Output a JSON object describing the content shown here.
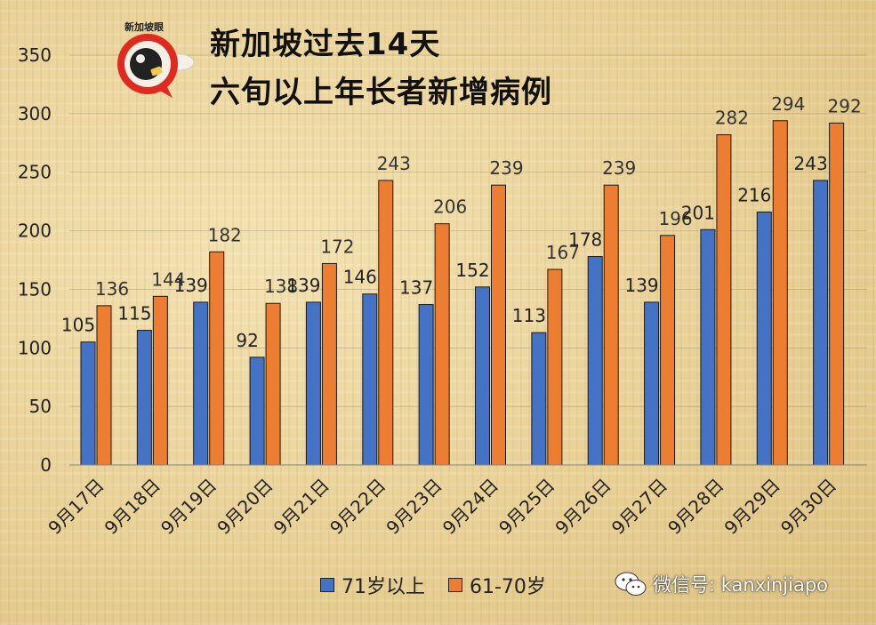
{
  "header": {
    "title_line1": "新加坡过去14天",
    "title_line2": "六旬以上年长者新增病例",
    "logo_text": "新加坡眼"
  },
  "footer": {
    "wechat_label": "微信号: kanxinjiapo"
  },
  "colors": {
    "series_a": "#4472c4",
    "series_b": "#ed7d31"
  },
  "chart_data": {
    "type": "bar",
    "title": "新加坡过去14天 六旬以上年长者新增病例",
    "categories": [
      "9月17日",
      "9月18日",
      "9月19日",
      "9月20日",
      "9月21日",
      "9月22日",
      "9月23日",
      "9月24日",
      "9月25日",
      "9月26日",
      "9月27日",
      "9月28日",
      "9月29日",
      "9月30日"
    ],
    "series": [
      {
        "name": "71岁以上",
        "values": [
          105,
          115,
          139,
          92,
          139,
          146,
          137,
          152,
          113,
          178,
          139,
          201,
          216,
          243
        ]
      },
      {
        "name": "61-70岁",
        "values": [
          136,
          144,
          182,
          138,
          172,
          243,
          206,
          239,
          167,
          239,
          196,
          282,
          294,
          292
        ]
      }
    ],
    "ylim": [
      0,
      350
    ],
    "yticks": [
      0,
      50,
      100,
      150,
      200,
      250,
      300,
      350
    ],
    "grid": true,
    "legend_position": "bottom"
  }
}
